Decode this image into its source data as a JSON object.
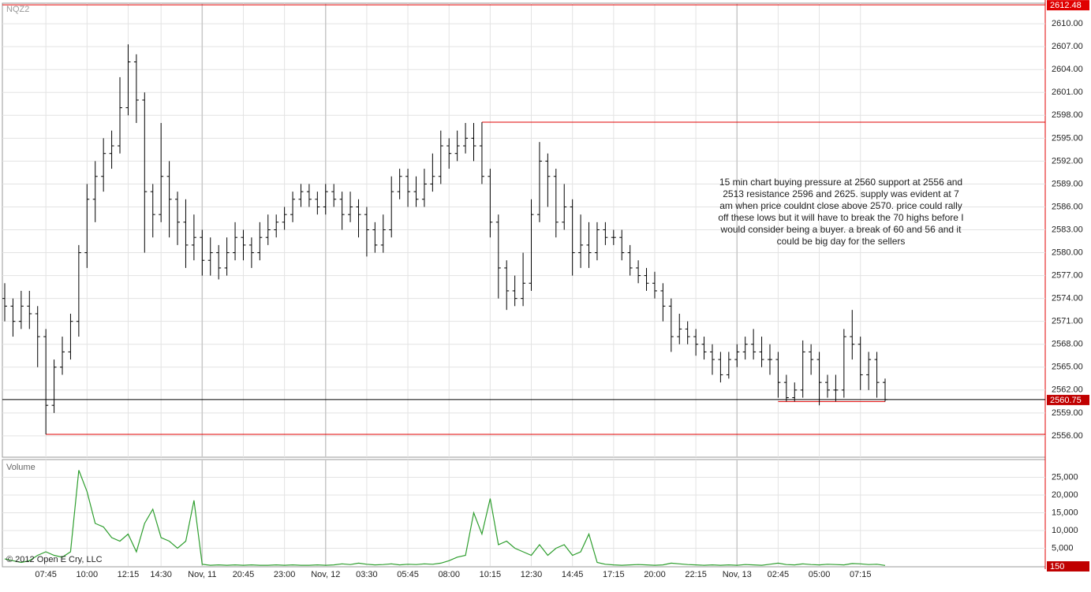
{
  "chart_data": {
    "type": "ohlc",
    "symbol": "NQZ2",
    "color": "#000000",
    "ylim": [
      2553.2,
      2612.7
    ],
    "yticks": [
      {
        "value": 2556,
        "label": "2556.00"
      },
      {
        "value": 2559,
        "label": "2559.00"
      },
      {
        "value": 2562,
        "label": "2562.00"
      },
      {
        "value": 2565,
        "label": "2565.00"
      },
      {
        "value": 2568,
        "label": "2568.00"
      },
      {
        "value": 2571,
        "label": "2571.00"
      },
      {
        "value": 2574,
        "label": "2574.00"
      },
      {
        "value": 2577,
        "label": "2577.00"
      },
      {
        "value": 2580,
        "label": "2580.00"
      },
      {
        "value": 2583,
        "label": "2583.00"
      },
      {
        "value": 2586,
        "label": "2586.00"
      },
      {
        "value": 2589,
        "label": "2589.00"
      },
      {
        "value": 2592,
        "label": "2592.00"
      },
      {
        "value": 2595,
        "label": "2595.00"
      },
      {
        "value": 2598,
        "label": "2598.00"
      },
      {
        "value": 2601,
        "label": "2601.00"
      },
      {
        "value": 2604,
        "label": "2604.00"
      },
      {
        "value": 2607,
        "label": "2607.00"
      },
      {
        "value": 2610,
        "label": "2610.00"
      }
    ],
    "grid": true,
    "categories": [
      null,
      null,
      null,
      null,
      null,
      "07:45",
      null,
      null,
      null,
      null,
      "10:00",
      null,
      null,
      null,
      null,
      "12:15",
      null,
      null,
      null,
      "14:30",
      null,
      null,
      null,
      null,
      "Nov, 11",
      null,
      null,
      null,
      null,
      "20:45",
      null,
      null,
      null,
      null,
      "23:00",
      null,
      null,
      null,
      null,
      "Nov, 12",
      null,
      null,
      null,
      null,
      "03:30",
      null,
      null,
      null,
      null,
      "05:45",
      null,
      null,
      null,
      null,
      "08:00",
      null,
      null,
      null,
      null,
      "10:15",
      null,
      null,
      null,
      null,
      "12:30",
      null,
      null,
      null,
      null,
      "14:45",
      null,
      null,
      null,
      null,
      "17:15",
      null,
      null,
      null,
      null,
      "20:00",
      null,
      null,
      null,
      null,
      "22:15",
      null,
      null,
      null,
      null,
      "Nov, 13",
      null,
      null,
      null,
      null,
      "02:45",
      null,
      null,
      null,
      null,
      "05:00",
      null,
      null,
      null,
      null,
      "07:15",
      null,
      null,
      null
    ],
    "ohlc": [
      [
        2574,
        2576,
        2571,
        2573
      ],
      [
        2573,
        2574,
        2569,
        2571
      ],
      [
        2571,
        2575,
        2570,
        2573
      ],
      [
        2573,
        2575,
        2570,
        2572
      ],
      [
        2572,
        2573,
        2565,
        2569
      ],
      [
        2569,
        2570,
        2556.2,
        2560
      ],
      [
        2560,
        2566,
        2559,
        2565
      ],
      [
        2565,
        2569,
        2564,
        2567
      ],
      [
        2567,
        2572,
        2566,
        2571
      ],
      [
        2571,
        2581,
        2569,
        2580
      ],
      [
        2580,
        2589,
        2578,
        2587
      ],
      [
        2587,
        2592,
        2584,
        2590
      ],
      [
        2590,
        2595,
        2588,
        2593
      ],
      [
        2593,
        2596,
        2591,
        2594
      ],
      [
        2594,
        2603,
        2593,
        2599
      ],
      [
        2599,
        2607.3,
        2598,
        2605
      ],
      [
        2605,
        2606,
        2597,
        2600
      ],
      [
        2600,
        2601,
        2580,
        2588
      ],
      [
        2588,
        2589,
        2582,
        2585
      ],
      [
        2585,
        2597,
        2584,
        2590
      ],
      [
        2590,
        2592,
        2582,
        2587
      ],
      [
        2587,
        2588,
        2581,
        2584
      ],
      [
        2584,
        2587,
        2578,
        2581
      ],
      [
        2581,
        2585,
        2579,
        2582
      ],
      [
        2582,
        2583,
        2577,
        2579
      ],
      [
        2579,
        2582,
        2577,
        2580
      ],
      [
        2580,
        2581,
        2576.5,
        2578
      ],
      [
        2578,
        2582,
        2577,
        2580
      ],
      [
        2580,
        2584,
        2579,
        2582
      ],
      [
        2582,
        2583,
        2579,
        2581
      ],
      [
        2581,
        2582,
        2578,
        2580
      ],
      [
        2580,
        2584,
        2579,
        2582
      ],
      [
        2582,
        2585,
        2581,
        2583
      ],
      [
        2583,
        2585,
        2582,
        2584
      ],
      [
        2584,
        2586,
        2583,
        2585
      ],
      [
        2585,
        2588,
        2584,
        2587
      ],
      [
        2587,
        2589,
        2586,
        2588
      ],
      [
        2588,
        2589,
        2586,
        2587
      ],
      [
        2587,
        2588,
        2585,
        2586
      ],
      [
        2586,
        2589,
        2585,
        2588
      ],
      [
        2588,
        2589,
        2586,
        2587
      ],
      [
        2587,
        2588,
        2583,
        2585
      ],
      [
        2585,
        2588,
        2584,
        2586
      ],
      [
        2586,
        2587,
        2582,
        2585
      ],
      [
        2585,
        2586,
        2579.5,
        2583
      ],
      [
        2583,
        2584,
        2580,
        2581
      ],
      [
        2581,
        2585,
        2580,
        2583
      ],
      [
        2583,
        2590,
        2582,
        2588
      ],
      [
        2588,
        2591,
        2587,
        2590
      ],
      [
        2590,
        2591,
        2586,
        2588
      ],
      [
        2588,
        2590,
        2586,
        2587
      ],
      [
        2587,
        2591,
        2586,
        2589
      ],
      [
        2589,
        2593,
        2588,
        2590
      ],
      [
        2590,
        2596,
        2589,
        2594
      ],
      [
        2594,
        2595,
        2591,
        2593
      ],
      [
        2593,
        2596,
        2592,
        2594
      ],
      [
        2594,
        2597,
        2593,
        2595
      ],
      [
        2595,
        2597,
        2592,
        2594
      ],
      [
        2594,
        2597.1,
        2589,
        2590
      ],
      [
        2590,
        2591,
        2582,
        2584
      ],
      [
        2584,
        2585,
        2574,
        2578
      ],
      [
        2578,
        2579,
        2572.5,
        2575
      ],
      [
        2575,
        2577,
        2573,
        2574
      ],
      [
        2574,
        2580,
        2573,
        2576
      ],
      [
        2576,
        2587,
        2575,
        2585
      ],
      [
        2585,
        2594.5,
        2584,
        2592
      ],
      [
        2592,
        2593,
        2586,
        2590
      ],
      [
        2590,
        2591,
        2582,
        2584
      ],
      [
        2584,
        2589,
        2583,
        2586
      ],
      [
        2586,
        2587,
        2577,
        2580
      ],
      [
        2580,
        2585,
        2578,
        2581
      ],
      [
        2581,
        2584,
        2578,
        2580
      ],
      [
        2580,
        2584,
        2579,
        2583
      ],
      [
        2583,
        2584,
        2581,
        2582
      ],
      [
        2582,
        2583,
        2581,
        2582
      ],
      [
        2582,
        2583,
        2579,
        2580
      ],
      [
        2580,
        2581,
        2577,
        2578
      ],
      [
        2578,
        2579,
        2576,
        2577
      ],
      [
        2577,
        2578,
        2575,
        2576
      ],
      [
        2576,
        2577.5,
        2574,
        2575
      ],
      [
        2575,
        2576,
        2571,
        2573
      ],
      [
        2573,
        2574,
        2567,
        2569
      ],
      [
        2569,
        2572,
        2568,
        2570
      ],
      [
        2570,
        2571,
        2568,
        2569
      ],
      [
        2569,
        2570,
        2566.5,
        2568
      ],
      [
        2568,
        2569,
        2566,
        2567
      ],
      [
        2567,
        2568,
        2564,
        2566
      ],
      [
        2566,
        2567,
        2563,
        2564
      ],
      [
        2564,
        2567,
        2563.5,
        2566
      ],
      [
        2566,
        2568,
        2565,
        2567
      ],
      [
        2567,
        2569,
        2566,
        2568
      ],
      [
        2568,
        2570,
        2566,
        2567
      ],
      [
        2567,
        2569,
        2565,
        2566
      ],
      [
        2566,
        2568,
        2564,
        2566
      ],
      [
        2566,
        2567,
        2561,
        2563
      ],
      [
        2563,
        2564,
        2560.5,
        2561
      ],
      [
        2561,
        2563,
        2560.5,
        2562
      ],
      [
        2562,
        2568.5,
        2561,
        2567
      ],
      [
        2567,
        2568,
        2564,
        2566
      ],
      [
        2566,
        2567,
        2560,
        2563
      ],
      [
        2563,
        2564,
        2561,
        2562
      ],
      [
        2562,
        2564,
        2560.5,
        2562
      ],
      [
        2562,
        2570,
        2561,
        2569
      ],
      [
        2569,
        2572.5,
        2566,
        2568
      ],
      [
        2568,
        2569,
        2562,
        2564
      ],
      [
        2564,
        2567,
        2562,
        2566
      ],
      [
        2566,
        2567,
        2561,
        2563
      ],
      [
        2563,
        2563.5,
        2560.5,
        2560.75
      ]
    ],
    "levels": [
      {
        "value": 2612.48,
        "color": "#e00000",
        "from": 0,
        "to": 107
      },
      {
        "value": 2597.1,
        "color": "#e00000",
        "from": 58,
        "to": 107
      },
      {
        "value": 2556.2,
        "color": "#e00000",
        "from": 5,
        "to": 107
      },
      {
        "value": 2560.5,
        "color": "#e00000",
        "from": 94,
        "to": 107
      }
    ],
    "note": [
      "15 min chart buying pressure at 2560 support at 2556 and",
      "2513 resistance 2596 and 2625. supply was evident at 7",
      "am when price couldnt close above 2570. price could rally",
      "off these lows but it will have to break the 70 highs before I",
      "would consider being a buyer. a break of 60 and 56 and it",
      "could be big day for the sellers"
    ],
    "volume": {
      "label": "Volume",
      "color": "#2e9e2e",
      "ylim": [
        0,
        30000
      ],
      "yticks": [
        {
          "value": 5000,
          "label": "5,000"
        },
        {
          "value": 10000,
          "label": "10,000"
        },
        {
          "value": 15000,
          "label": "15,000"
        },
        {
          "value": 20000,
          "label": "20,000"
        },
        {
          "value": 25000,
          "label": "25,000"
        }
      ],
      "values": [
        2000,
        1500,
        1000,
        1500,
        3000,
        4000,
        3000,
        2500,
        4000,
        27000,
        21000,
        12000,
        11000,
        8000,
        7000,
        9000,
        4000,
        12000,
        16000,
        8000,
        7000,
        5000,
        7000,
        18500,
        500,
        200,
        300,
        200,
        300,
        200,
        300,
        200,
        200,
        300,
        200,
        300,
        200,
        200,
        300,
        200,
        300,
        600,
        400,
        800,
        500,
        300,
        400,
        600,
        300,
        500,
        400,
        600,
        500,
        800,
        1500,
        2500,
        3000,
        15000,
        9000,
        19000,
        6000,
        7000,
        5000,
        4000,
        3000,
        6000,
        3000,
        5000,
        6000,
        3000,
        4000,
        9000,
        1000,
        500,
        300,
        200,
        300,
        400,
        300,
        200,
        300,
        800,
        600,
        400,
        300,
        200,
        300,
        200,
        300,
        200,
        400,
        300,
        200,
        500,
        800,
        400,
        300,
        600,
        400,
        300,
        500,
        400,
        300,
        700,
        600,
        400,
        500,
        150
      ]
    },
    "copyright": "© 2012 Open E Cry, LLC"
  }
}
